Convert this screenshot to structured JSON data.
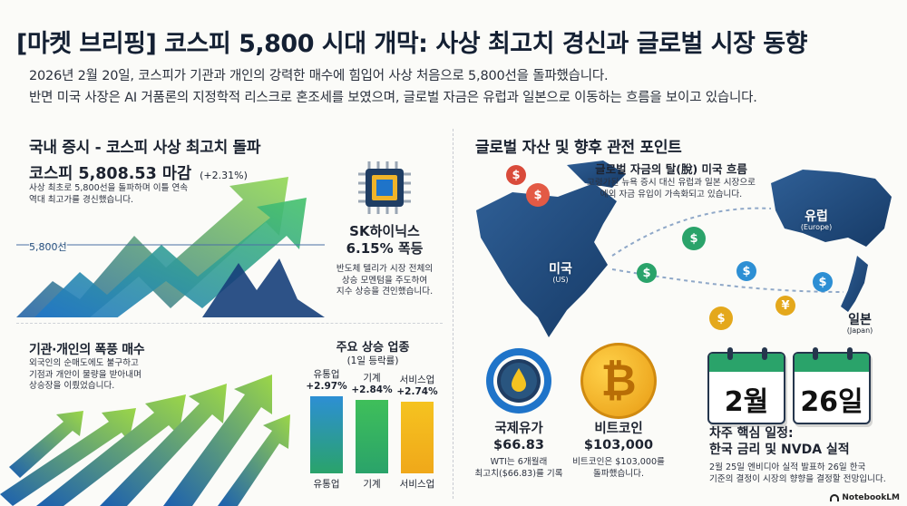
{
  "header": {
    "title": "[마켓 브리핑] 코스피 5,800 시대 개막: 사상 최고치 경신과 글로벌 시장 동향",
    "intro_line1": "2026년 2월 20일, 코스피가 기관과 개인의 강력한 매수에 힘입어 사상 처음으로 5,800선을 돌파했습니다.",
    "intro_line2": "반면 미국 사장은 AI 거품론의 지정학적 리스크로 혼조세를 보였으며, 글로벌 자금은 유럽과 일본으로 이동하는 흐름을 보이고 있습니다."
  },
  "domestic": {
    "heading": "국내 증시 - 코스피 사상 최고치 돌파",
    "kospi_value": "코스피 5,808.53 마감",
    "kospi_change": "(+2.31%)",
    "kospi_desc_line1": "사상 최초로 5,800선을 돌파하며 이틀 연속",
    "kospi_desc_line2": "역대 최고가를 경신했습니다.",
    "level_label": "5,800선",
    "sk_title_line1": "SK하이닉스",
    "sk_title_line2": "6.15% 폭등",
    "sk_desc_line1": "반도체 텔리가 시장 전체의",
    "sk_desc_line2": "상승 모멘텀을 주도하여",
    "sk_desc_line3": "지수 상승을 견인했습니다."
  },
  "buying": {
    "heading": "기관·개인의 폭풍 매수",
    "desc_line1": "외국인의 순매도에도 불구하고",
    "desc_line2": "기점과 개안이 물량을 받아내며",
    "desc_line3": "상승장을 이뤘었습니다."
  },
  "sectors": {
    "heading": "주요 상승 업종",
    "subheading": "(1일 등락률)",
    "items": [
      {
        "name_line1": "유통업",
        "value": "+2.97%",
        "category": "유통업",
        "percent": 2.97
      },
      {
        "name_line1": "기계",
        "value": "+2.84%",
        "category": "기계",
        "percent": 2.84
      },
      {
        "name_line1": "서비스업",
        "value": "+2.74%",
        "category": "서비스업",
        "percent": 2.74
      }
    ]
  },
  "global": {
    "heading": "글로벌 자산 및 향후 관전 포인트",
    "flow_title": "글로벌 자금의 탈(脫) 미국 흐름",
    "flow_desc_line1": "고령가된 뉴욕 증시 대신 유럽과 일본 시장으로",
    "flow_desc_line2": "예외 자금 유입이 가속화되고 있습니다.",
    "map_us": "미국",
    "map_us_sub": "(US)",
    "map_eu": "유럽",
    "map_eu_sub": "(Europe)",
    "map_jp": "일본",
    "map_jp_sub": "(Japan)"
  },
  "oil": {
    "title": "국제유가",
    "value": "$66.83",
    "desc_line1": "WTI는 6개월래",
    "desc_line2": "최고치($66.83)를 기록"
  },
  "bitcoin": {
    "title": "비트코인",
    "value": "$103,000",
    "symbol": "₿",
    "desc_line1": "비트코인은 $103,000를",
    "desc_line2": "돌파했습니다."
  },
  "schedule": {
    "cal1": "2월",
    "cal2": "26일",
    "title_line1": "차주 핵심 일정:",
    "title_line2": "한국 금리 및 NVDA 실적",
    "desc_line1": "2월 25일 엔비디아 실적 발표하 26일 한국",
    "desc_line2": "기준의 결정이 시장의 향향을 결정할 전망입니다."
  },
  "footer": {
    "brand": "NotebookLM"
  },
  "colors": {
    "green": "#2aa36a",
    "blue": "#1f74c9",
    "yellow": "#f5c320"
  }
}
